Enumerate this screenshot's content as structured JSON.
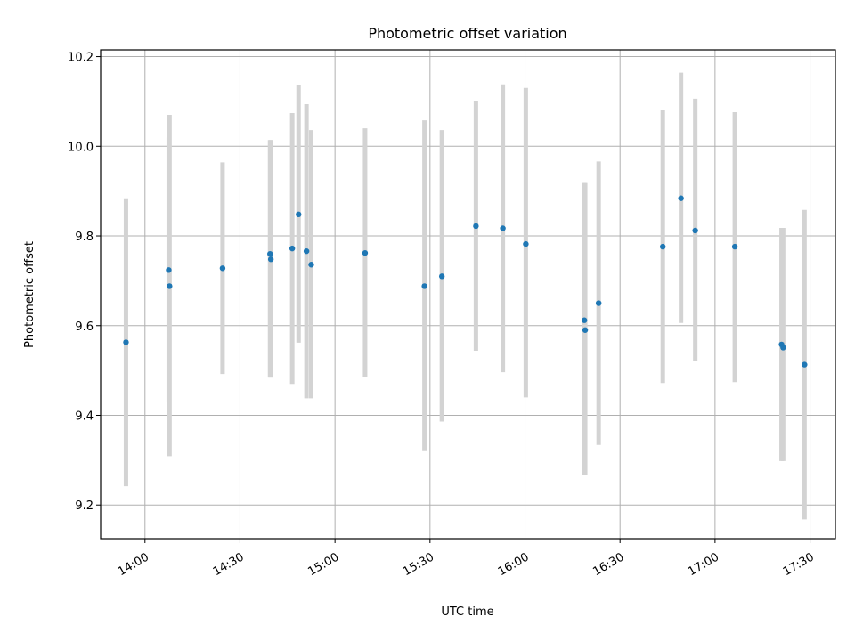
{
  "chart_data": {
    "type": "scatter",
    "title": "Photometric offset variation",
    "xlabel": "UTC time",
    "ylabel": "Photometric offset",
    "date": "2000-01-01",
    "xlim": [
      "13:46",
      "17:38"
    ],
    "ylim": [
      9.125,
      10.215
    ],
    "grid": true,
    "colors": {
      "point": "#1f77b4",
      "errorbar": "#d3d3d3",
      "grid": "#b0b0b0"
    },
    "x_ticks": [
      "14:00",
      "14:30",
      "15:00",
      "15:30",
      "16:00",
      "16:30",
      "17:00",
      "17:30"
    ],
    "y_ticks": [
      "9.2",
      "9.4",
      "9.6",
      "9.8",
      "10.0",
      "10.2"
    ],
    "points": [
      {
        "time": "13:54:00",
        "y": 9.563,
        "low": 9.242,
        "high": 9.884
      },
      {
        "time": "14:07:30",
        "y": 9.724,
        "low": 9.43,
        "high": 10.02
      },
      {
        "time": "14:07:45",
        "y": 9.688,
        "low": 9.309,
        "high": 10.07
      },
      {
        "time": "14:24:30",
        "y": 9.728,
        "low": 9.492,
        "high": 9.964
      },
      {
        "time": "14:39:30",
        "y": 9.76,
        "low": 9.484,
        "high": 10.014
      },
      {
        "time": "14:39:45",
        "y": 9.748,
        "low": 9.484,
        "high": 10.014
      },
      {
        "time": "14:46:30",
        "y": 9.772,
        "low": 9.47,
        "high": 10.074
      },
      {
        "time": "14:48:30",
        "y": 9.848,
        "low": 9.562,
        "high": 10.136
      },
      {
        "time": "14:51:00",
        "y": 9.766,
        "low": 9.438,
        "high": 10.094
      },
      {
        "time": "14:52:30",
        "y": 9.736,
        "low": 9.438,
        "high": 10.036
      },
      {
        "time": "15:09:30",
        "y": 9.762,
        "low": 9.486,
        "high": 10.04
      },
      {
        "time": "15:28:15",
        "y": 9.688,
        "low": 9.32,
        "high": 10.058
      },
      {
        "time": "15:33:45",
        "y": 9.71,
        "low": 9.386,
        "high": 10.036
      },
      {
        "time": "15:44:30",
        "y": 9.822,
        "low": 9.544,
        "high": 10.1
      },
      {
        "time": "15:53:00",
        "y": 9.817,
        "low": 9.496,
        "high": 10.138
      },
      {
        "time": "16:00:15",
        "y": 9.782,
        "low": 9.44,
        "high": 10.13
      },
      {
        "time": "16:18:45",
        "y": 9.612,
        "low": 9.268,
        "high": 9.92
      },
      {
        "time": "16:19:00",
        "y": 9.59,
        "low": 9.268,
        "high": 9.92
      },
      {
        "time": "16:23:15",
        "y": 9.65,
        "low": 9.334,
        "high": 9.966
      },
      {
        "time": "16:43:30",
        "y": 9.776,
        "low": 9.472,
        "high": 10.082
      },
      {
        "time": "16:49:15",
        "y": 9.884,
        "low": 9.606,
        "high": 10.164
      },
      {
        "time": "16:53:45",
        "y": 9.812,
        "low": 9.52,
        "high": 10.106
      },
      {
        "time": "17:06:15",
        "y": 9.776,
        "low": 9.474,
        "high": 10.076
      },
      {
        "time": "17:21:00",
        "y": 9.558,
        "low": 9.298,
        "high": 9.818
      },
      {
        "time": "17:21:30",
        "y": 9.551,
        "low": 9.298,
        "high": 9.818
      },
      {
        "time": "17:28:15",
        "y": 9.513,
        "low": 9.168,
        "high": 9.858
      }
    ]
  }
}
